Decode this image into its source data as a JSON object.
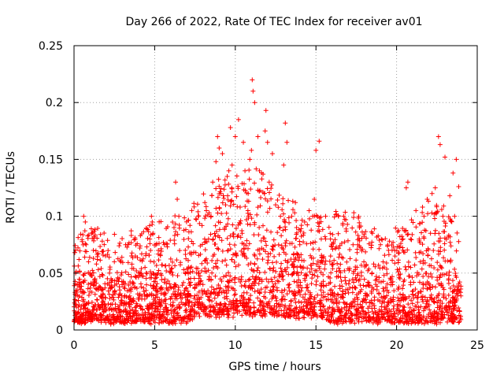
{
  "chart_data": {
    "type": "scatter",
    "title": "Day 266 of 2022, Rate Of TEC Index for receiver av01",
    "xlabel": "GPS time / hours",
    "ylabel": "ROTI / TECUs",
    "xlim": [
      0,
      25
    ],
    "ylim": [
      0,
      0.25
    ],
    "xticks": [
      0,
      5,
      10,
      15,
      20,
      25
    ],
    "xtick_labels": [
      "0",
      "5",
      "10",
      "15",
      "20",
      "25"
    ],
    "yticks": [
      0,
      0.05,
      0.1,
      0.15,
      0.2,
      0.25
    ],
    "ytick_labels": [
      "0",
      "0.05",
      "0.1",
      "0.15",
      "0.2",
      "0.25"
    ],
    "grid": true,
    "marker": "+",
    "color": "#ff0000",
    "series": [
      {
        "x": [
          0.05,
          0.1,
          0.15,
          0.2,
          0.3,
          0.6,
          0.7,
          0.75,
          0.9,
          1.1,
          1.2,
          1.3,
          2.2,
          2.5,
          2.8,
          3.2,
          3.8,
          4.4,
          4.7,
          4.8,
          4.85,
          4.9,
          5.6,
          6.2,
          6.3,
          6.4,
          6.5,
          6.9,
          7.3,
          8.1,
          8.5,
          8.6,
          8.8,
          8.9,
          9.0,
          9.1,
          9.2,
          9.4,
          9.5,
          9.6,
          9.7,
          9.8,
          10.0,
          10.2,
          10.5,
          10.6,
          10.8,
          10.9,
          11.0,
          11.05,
          11.1,
          11.2,
          11.4,
          11.5,
          11.8,
          11.85,
          11.9,
          12.0,
          12.1,
          12.3,
          12.5,
          12.8,
          13.0,
          13.1,
          13.2,
          13.5,
          13.8,
          14.0,
          14.3,
          14.8,
          14.9,
          15.0,
          15.2,
          15.6,
          15.9,
          16.4,
          17.3,
          17.7,
          18.5,
          19.0,
          19.5,
          19.9,
          20.4,
          20.6,
          20.7,
          21.2,
          21.7,
          21.9,
          22.1,
          22.2,
          22.4,
          22.6,
          22.7,
          23.0,
          23.3,
          23.5,
          23.6,
          23.7,
          23.85
        ],
        "y": [
          0.068,
          0.05,
          0.02,
          0.035,
          0.04,
          0.1,
          0.095,
          0.075,
          0.06,
          0.085,
          0.07,
          0.045,
          0.05,
          0.06,
          0.045,
          0.075,
          0.065,
          0.055,
          0.08,
          0.1,
          0.095,
          0.085,
          0.075,
          0.09,
          0.13,
          0.115,
          0.1,
          0.07,
          0.105,
          0.08,
          0.1,
          0.13,
          0.148,
          0.17,
          0.16,
          0.12,
          0.155,
          0.11,
          0.135,
          0.14,
          0.178,
          0.145,
          0.17,
          0.185,
          0.165,
          0.14,
          0.12,
          0.15,
          0.158,
          0.22,
          0.21,
          0.2,
          0.17,
          0.14,
          0.12,
          0.175,
          0.193,
          0.165,
          0.13,
          0.155,
          0.11,
          0.1,
          0.145,
          0.182,
          0.165,
          0.1,
          0.09,
          0.075,
          0.095,
          0.1,
          0.115,
          0.158,
          0.166,
          0.1,
          0.08,
          0.1,
          0.075,
          0.09,
          0.085,
          0.075,
          0.07,
          0.065,
          0.08,
          0.125,
          0.13,
          0.105,
          0.1,
          0.115,
          0.085,
          0.12,
          0.125,
          0.17,
          0.163,
          0.152,
          0.118,
          0.138,
          0.1,
          0.15,
          0.126
        ],
        "background_range_by_hour": [
          {
            "h": 0,
            "lo": 0.005,
            "hi": 0.045
          },
          {
            "h": 1,
            "lo": 0.005,
            "hi": 0.06
          },
          {
            "h": 2,
            "lo": 0.005,
            "hi": 0.05
          },
          {
            "h": 3,
            "lo": 0.005,
            "hi": 0.05
          },
          {
            "h": 4,
            "lo": 0.005,
            "hi": 0.055
          },
          {
            "h": 5,
            "lo": 0.005,
            "hi": 0.06
          },
          {
            "h": 6,
            "lo": 0.005,
            "hi": 0.065
          },
          {
            "h": 7,
            "lo": 0.005,
            "hi": 0.07
          },
          {
            "h": 8,
            "lo": 0.01,
            "hi": 0.085
          },
          {
            "h": 9,
            "lo": 0.01,
            "hi": 0.1
          },
          {
            "h": 10,
            "lo": 0.01,
            "hi": 0.105
          },
          {
            "h": 11,
            "lo": 0.01,
            "hi": 0.11
          },
          {
            "h": 12,
            "lo": 0.01,
            "hi": 0.1
          },
          {
            "h": 13,
            "lo": 0.01,
            "hi": 0.085
          },
          {
            "h": 14,
            "lo": 0.01,
            "hi": 0.075
          },
          {
            "h": 15,
            "lo": 0.01,
            "hi": 0.07
          },
          {
            "h": 16,
            "lo": 0.005,
            "hi": 0.07
          },
          {
            "h": 17,
            "lo": 0.005,
            "hi": 0.07
          },
          {
            "h": 18,
            "lo": 0.005,
            "hi": 0.065
          },
          {
            "h": 19,
            "lo": 0.005,
            "hi": 0.05
          },
          {
            "h": 20,
            "lo": 0.005,
            "hi": 0.055
          },
          {
            "h": 21,
            "lo": 0.005,
            "hi": 0.065
          },
          {
            "h": 22,
            "lo": 0.005,
            "hi": 0.08
          },
          {
            "h": 23,
            "lo": 0.005,
            "hi": 0.075
          },
          {
            "h": 24,
            "lo": 0.005,
            "hi": 0.05
          }
        ]
      }
    ]
  }
}
